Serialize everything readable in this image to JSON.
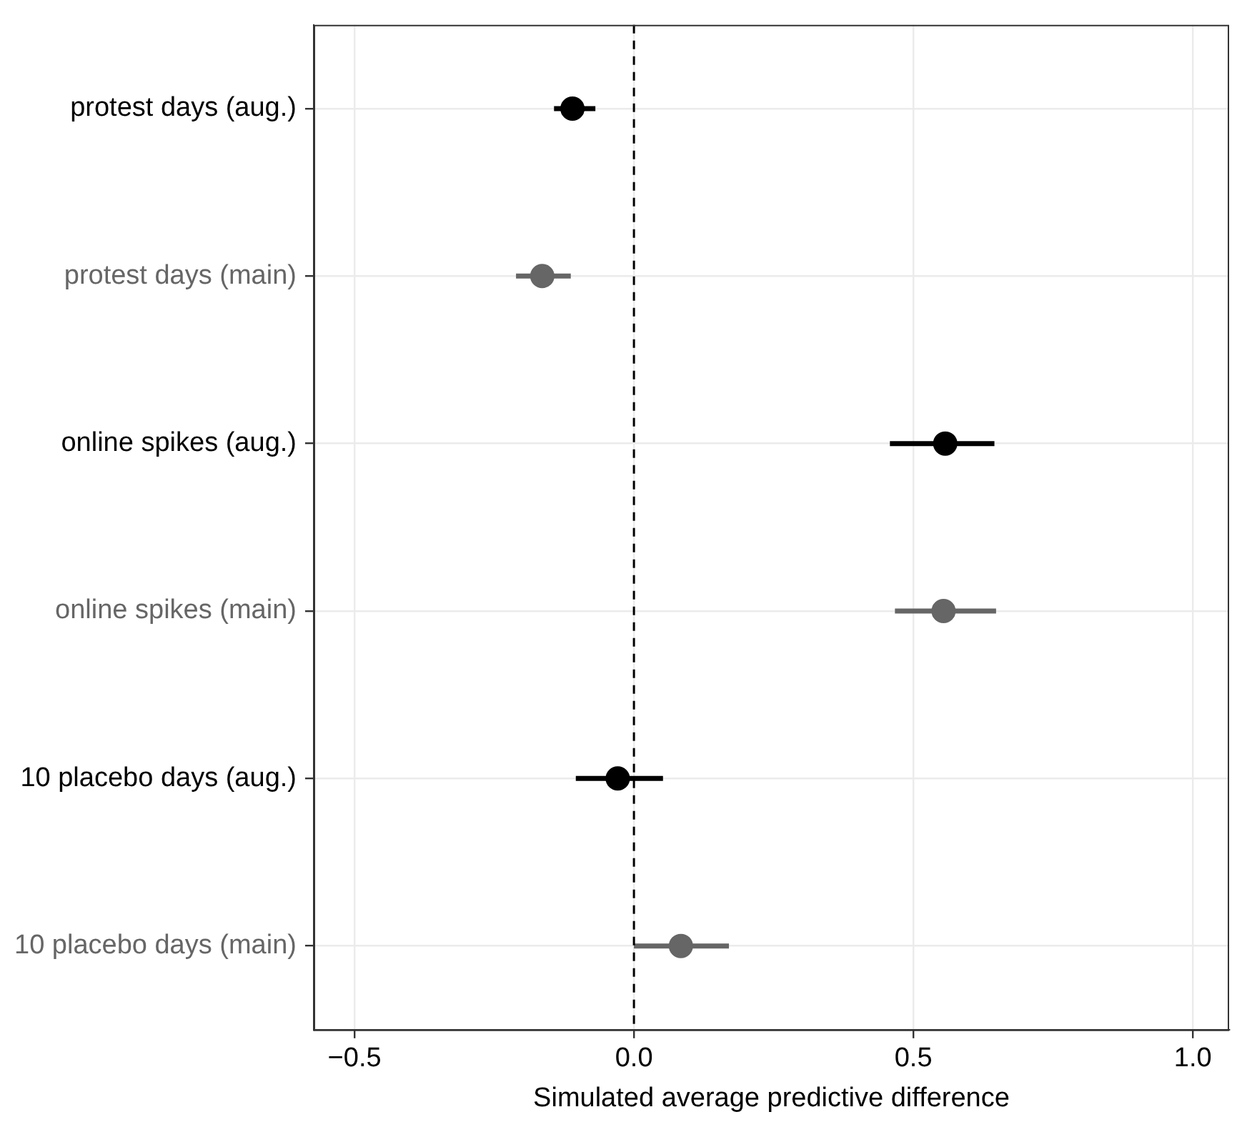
{
  "chart_data": {
    "type": "scatter",
    "orientation": "horizontal",
    "xlabel": "Simulated average predictive difference",
    "categories": [
      "protest days (aug.)",
      "protest days (main)",
      "online spikes (aug.)",
      "online spikes (main)",
      "10 placebo days (aug.)",
      "10 placebo days (main)"
    ],
    "values": [
      -0.11,
      -0.164,
      0.557,
      0.554,
      -0.029,
      0.084
    ],
    "errors": [
      [
        -0.143,
        -0.069
      ],
      [
        -0.211,
        -0.113
      ],
      [
        0.458,
        0.645
      ],
      [
        0.467,
        0.648
      ],
      [
        -0.104,
        0.052
      ],
      [
        0.0,
        0.17
      ]
    ],
    "colors": [
      "#000000",
      "#666666",
      "#000000",
      "#666666",
      "#000000",
      "#666666"
    ],
    "xlim": [
      -0.573,
      1.065
    ],
    "xticks": [
      {
        "value": -0.5,
        "label": "−0.5"
      },
      {
        "value": 0,
        "label": "0.0"
      },
      {
        "value": 0.5,
        "label": "0.5"
      },
      {
        "value": 1,
        "label": "1.0"
      }
    ],
    "ref_lines": [
      {
        "axis": "x",
        "value": 0,
        "color": "#000000",
        "line_style": "dashed"
      }
    ],
    "grid": true,
    "marker": "circle",
    "legend": false
  }
}
